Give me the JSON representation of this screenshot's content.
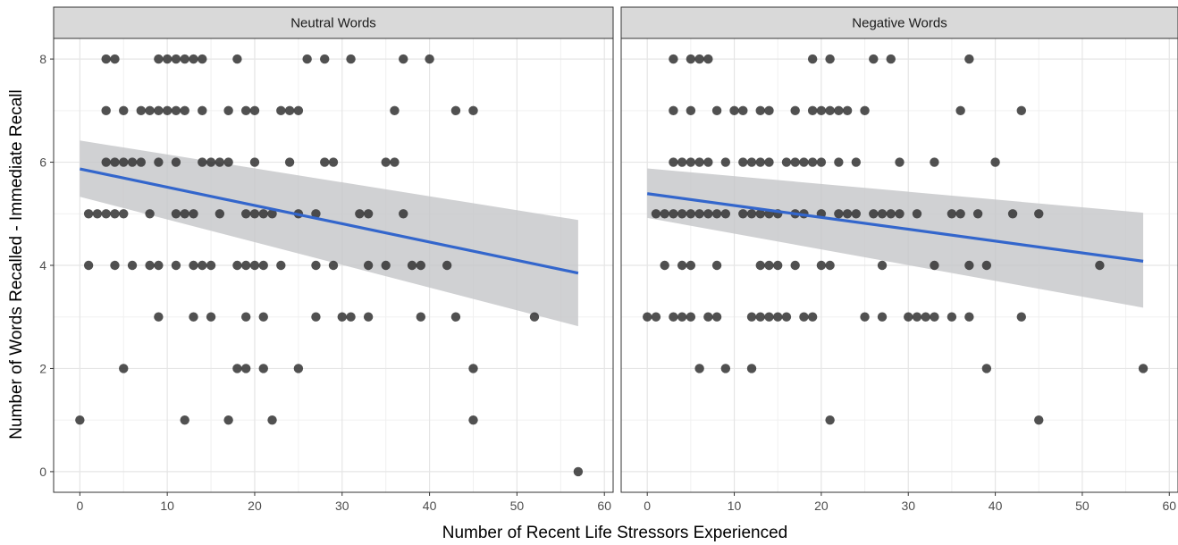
{
  "chart_data": {
    "type": "scatter",
    "facets": [
      "Neutral Words",
      "Negative Words"
    ],
    "xlabel": "Number of Recent Life Stressors Experienced",
    "ylabel": "Number of Words Recalled - Immediate Recall",
    "xlim": [
      -3,
      61
    ],
    "ylim": [
      -0.4,
      8.4
    ],
    "xticks": [
      0,
      10,
      20,
      30,
      40,
      50,
      60
    ],
    "yticks": [
      0,
      2,
      4,
      6,
      8
    ],
    "grid": true,
    "colors": {
      "point": "#333333",
      "fit_line": "#3366cc",
      "confidence_band": "#c4c6c8",
      "strip_fill": "#d9d9d9",
      "grid": "#e5e5e5"
    },
    "panels": [
      {
        "label": "Neutral Words",
        "points": [
          [
            3,
            8
          ],
          [
            4,
            8
          ],
          [
            9,
            8
          ],
          [
            10,
            8
          ],
          [
            11,
            8
          ],
          [
            12,
            8
          ],
          [
            13,
            8
          ],
          [
            14,
            8
          ],
          [
            18,
            8
          ],
          [
            26,
            8
          ],
          [
            28,
            8
          ],
          [
            31,
            8
          ],
          [
            37,
            8
          ],
          [
            40,
            8
          ],
          [
            3,
            7
          ],
          [
            5,
            7
          ],
          [
            7,
            7
          ],
          [
            8,
            7
          ],
          [
            9,
            7
          ],
          [
            10,
            7
          ],
          [
            11,
            7
          ],
          [
            12,
            7
          ],
          [
            14,
            7
          ],
          [
            17,
            7
          ],
          [
            19,
            7
          ],
          [
            20,
            7
          ],
          [
            23,
            7
          ],
          [
            24,
            7
          ],
          [
            25,
            7
          ],
          [
            36,
            7
          ],
          [
            43,
            7
          ],
          [
            45,
            7
          ],
          [
            3,
            6
          ],
          [
            4,
            6
          ],
          [
            5,
            6
          ],
          [
            6,
            6
          ],
          [
            7,
            6
          ],
          [
            9,
            6
          ],
          [
            11,
            6
          ],
          [
            14,
            6
          ],
          [
            15,
            6
          ],
          [
            16,
            6
          ],
          [
            17,
            6
          ],
          [
            20,
            6
          ],
          [
            24,
            6
          ],
          [
            28,
            6
          ],
          [
            29,
            6
          ],
          [
            35,
            6
          ],
          [
            36,
            6
          ],
          [
            1,
            5
          ],
          [
            2,
            5
          ],
          [
            3,
            5
          ],
          [
            4,
            5
          ],
          [
            5,
            5
          ],
          [
            8,
            5
          ],
          [
            11,
            5
          ],
          [
            12,
            5
          ],
          [
            13,
            5
          ],
          [
            16,
            5
          ],
          [
            19,
            5
          ],
          [
            20,
            5
          ],
          [
            21,
            5
          ],
          [
            22,
            5
          ],
          [
            25,
            5
          ],
          [
            27,
            5
          ],
          [
            32,
            5
          ],
          [
            33,
            5
          ],
          [
            37,
            5
          ],
          [
            1,
            4
          ],
          [
            4,
            4
          ],
          [
            6,
            4
          ],
          [
            8,
            4
          ],
          [
            9,
            4
          ],
          [
            11,
            4
          ],
          [
            13,
            4
          ],
          [
            14,
            4
          ],
          [
            15,
            4
          ],
          [
            18,
            4
          ],
          [
            19,
            4
          ],
          [
            20,
            4
          ],
          [
            21,
            4
          ],
          [
            23,
            4
          ],
          [
            27,
            4
          ],
          [
            29,
            4
          ],
          [
            33,
            4
          ],
          [
            35,
            4
          ],
          [
            38,
            4
          ],
          [
            39,
            4
          ],
          [
            42,
            4
          ],
          [
            9,
            3
          ],
          [
            13,
            3
          ],
          [
            15,
            3
          ],
          [
            19,
            3
          ],
          [
            21,
            3
          ],
          [
            27,
            3
          ],
          [
            30,
            3
          ],
          [
            31,
            3
          ],
          [
            33,
            3
          ],
          [
            39,
            3
          ],
          [
            43,
            3
          ],
          [
            52,
            3
          ],
          [
            5,
            2
          ],
          [
            18,
            2
          ],
          [
            19,
            2
          ],
          [
            21,
            2
          ],
          [
            25,
            2
          ],
          [
            45,
            2
          ],
          [
            0,
            1
          ],
          [
            12,
            1
          ],
          [
            17,
            1
          ],
          [
            22,
            1
          ],
          [
            45,
            1
          ],
          [
            57,
            0
          ]
        ],
        "fit": {
          "x": [
            0,
            57
          ],
          "y": [
            5.87,
            3.85
          ]
        },
        "band": {
          "x": [
            0,
            57
          ],
          "upper": [
            6.42,
            4.88
          ],
          "lower": [
            5.33,
            2.82
          ]
        }
      },
      {
        "label": "Negative Words",
        "points": [
          [
            3,
            8
          ],
          [
            5,
            8
          ],
          [
            6,
            8
          ],
          [
            7,
            8
          ],
          [
            19,
            8
          ],
          [
            21,
            8
          ],
          [
            26,
            8
          ],
          [
            28,
            8
          ],
          [
            37,
            8
          ],
          [
            3,
            7
          ],
          [
            5,
            7
          ],
          [
            8,
            7
          ],
          [
            10,
            7
          ],
          [
            11,
            7
          ],
          [
            13,
            7
          ],
          [
            14,
            7
          ],
          [
            17,
            7
          ],
          [
            19,
            7
          ],
          [
            20,
            7
          ],
          [
            21,
            7
          ],
          [
            22,
            7
          ],
          [
            23,
            7
          ],
          [
            25,
            7
          ],
          [
            36,
            7
          ],
          [
            43,
            7
          ],
          [
            3,
            6
          ],
          [
            4,
            6
          ],
          [
            5,
            6
          ],
          [
            6,
            6
          ],
          [
            7,
            6
          ],
          [
            9,
            6
          ],
          [
            11,
            6
          ],
          [
            12,
            6
          ],
          [
            13,
            6
          ],
          [
            14,
            6
          ],
          [
            16,
            6
          ],
          [
            17,
            6
          ],
          [
            18,
            6
          ],
          [
            19,
            6
          ],
          [
            20,
            6
          ],
          [
            22,
            6
          ],
          [
            24,
            6
          ],
          [
            29,
            6
          ],
          [
            33,
            6
          ],
          [
            40,
            6
          ],
          [
            1,
            5
          ],
          [
            2,
            5
          ],
          [
            3,
            5
          ],
          [
            4,
            5
          ],
          [
            5,
            5
          ],
          [
            6,
            5
          ],
          [
            7,
            5
          ],
          [
            8,
            5
          ],
          [
            9,
            5
          ],
          [
            11,
            5
          ],
          [
            12,
            5
          ],
          [
            13,
            5
          ],
          [
            14,
            5
          ],
          [
            15,
            5
          ],
          [
            17,
            5
          ],
          [
            18,
            5
          ],
          [
            20,
            5
          ],
          [
            22,
            5
          ],
          [
            23,
            5
          ],
          [
            24,
            5
          ],
          [
            26,
            5
          ],
          [
            27,
            5
          ],
          [
            28,
            5
          ],
          [
            29,
            5
          ],
          [
            31,
            5
          ],
          [
            35,
            5
          ],
          [
            36,
            5
          ],
          [
            38,
            5
          ],
          [
            42,
            5
          ],
          [
            45,
            5
          ],
          [
            2,
            4
          ],
          [
            4,
            4
          ],
          [
            5,
            4
          ],
          [
            8,
            4
          ],
          [
            13,
            4
          ],
          [
            14,
            4
          ],
          [
            15,
            4
          ],
          [
            17,
            4
          ],
          [
            20,
            4
          ],
          [
            21,
            4
          ],
          [
            27,
            4
          ],
          [
            33,
            4
          ],
          [
            37,
            4
          ],
          [
            39,
            4
          ],
          [
            52,
            4
          ],
          [
            0,
            3
          ],
          [
            1,
            3
          ],
          [
            3,
            3
          ],
          [
            4,
            3
          ],
          [
            5,
            3
          ],
          [
            7,
            3
          ],
          [
            8,
            3
          ],
          [
            12,
            3
          ],
          [
            13,
            3
          ],
          [
            14,
            3
          ],
          [
            15,
            3
          ],
          [
            16,
            3
          ],
          [
            18,
            3
          ],
          [
            19,
            3
          ],
          [
            25,
            3
          ],
          [
            27,
            3
          ],
          [
            30,
            3
          ],
          [
            31,
            3
          ],
          [
            32,
            3
          ],
          [
            33,
            3
          ],
          [
            35,
            3
          ],
          [
            37,
            3
          ],
          [
            43,
            3
          ],
          [
            6,
            2
          ],
          [
            9,
            2
          ],
          [
            12,
            2
          ],
          [
            39,
            2
          ],
          [
            57,
            2
          ],
          [
            21,
            1
          ],
          [
            45,
            1
          ]
        ],
        "fit": {
          "x": [
            0,
            57
          ],
          "y": [
            5.39,
            4.08
          ]
        },
        "band": {
          "x": [
            0,
            57
          ],
          "upper": [
            5.88,
            5.02
          ],
          "lower": [
            4.92,
            3.18
          ]
        }
      }
    ]
  }
}
